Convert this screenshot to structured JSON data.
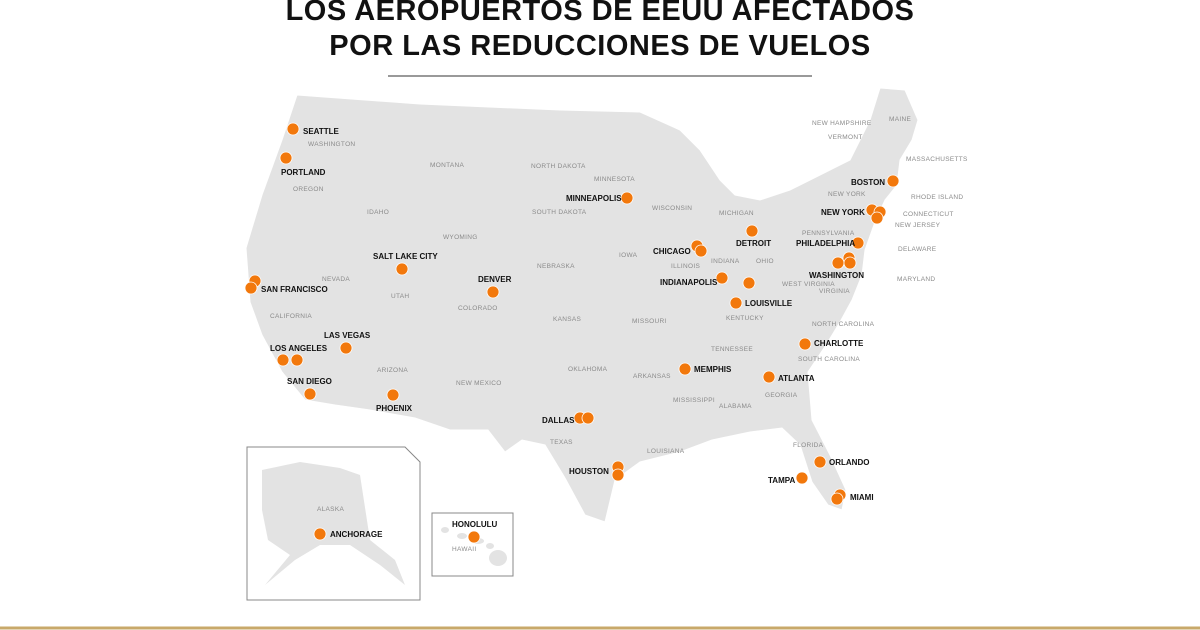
{
  "title": [
    "LOS AEROPUERTOS DE EEUU AFECTADOS",
    "POR LAS REDUCCIONES DE VUELOS"
  ],
  "airports": [
    "SEATTLE",
    "PORTLAND",
    "SAN FRANCISCO",
    "LOS ANGELES",
    "SAN DIEGO",
    "LAS VEGAS",
    "PHOENIX",
    "SALT LAKE CITY",
    "DENVER",
    "MINNEAPOLIS",
    "CHICAGO",
    "DETROIT",
    "INDIANAPOLIS",
    "LOUISVILLE",
    "MEMPHIS",
    "ATLANTA",
    "CHARLOTTE",
    "DALLAS",
    "HOUSTON",
    "ORLANDO",
    "TAMPA",
    "MIAMI",
    "BOSTON",
    "NEW YORK",
    "PHILADELPHIA",
    "WASHINGTON",
    "ANCHORAGE",
    "HONOLULU"
  ],
  "states": [
    "WASHINGTON",
    "OREGON",
    "CALIFORNIA",
    "NEVADA",
    "IDAHO",
    "MONTANA",
    "WYOMING",
    "UTAH",
    "COLORADO",
    "ARIZONA",
    "NEW MEXICO",
    "NORTH DAKOTA",
    "SOUTH DAKOTA",
    "NEBRASKA",
    "KANSAS",
    "OKLAHOMA",
    "TEXAS",
    "MINNESOTA",
    "WISCONSIN",
    "IOWA",
    "ILLINOIS",
    "MISSOURI",
    "ARKANSAS",
    "LOUISIANA",
    "MISSISSIPPI",
    "ALABAMA",
    "TENNESSEE",
    "KENTUCKY",
    "INDIANA",
    "OHIO",
    "MICHIGAN",
    "WEST VIRGINIA",
    "VIRGINIA",
    "NORTH CAROLINA",
    "SOUTH CAROLINA",
    "GEORGIA",
    "FLORIDA",
    "PENNSYLVANIA",
    "NEW YORK",
    "MAINE",
    "NEW HAMPSHIRE",
    "VERMONT",
    "MASSACHUSETTS",
    "RHODE ISLAND",
    "CONNECTICUT",
    "NEW JERSEY",
    "DELAWARE",
    "MARYLAND",
    "ALASKA",
    "HAWAII"
  ]
}
